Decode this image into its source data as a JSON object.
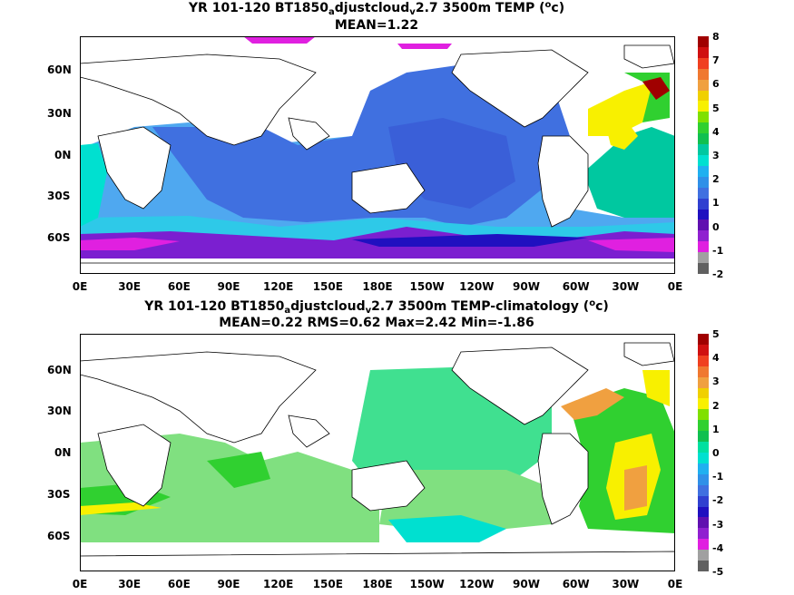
{
  "panel_top": {
    "title_pre": "YR 101-120 BT1850",
    "title_sub1": "a",
    "title_mid": "djustcloud",
    "title_sub2": "v",
    "title_post": "2.7 3500m TEMP (",
    "title_sup": "o",
    "title_end": "c)",
    "stats": "MEAN=1.22",
    "colorbar_ticks": [
      "8",
      "7",
      "6",
      "5",
      "4",
      "3",
      "2",
      "1",
      "0",
      "-1",
      "-2"
    ],
    "colorbar_colors": [
      "#a00000",
      "#d01010",
      "#f04020",
      "#f07830",
      "#f0a040",
      "#f0d000",
      "#f8f000",
      "#80e000",
      "#30d030",
      "#10c050",
      "#00c8a0",
      "#00e0d0",
      "#20b0f0",
      "#3090e8",
      "#4070e0",
      "#3040d0",
      "#2010c0",
      "#6010b0",
      "#9020d0",
      "#e020e0",
      "#a0a0a0",
      "#606060"
    ]
  },
  "panel_bottom": {
    "title_pre": "YR 101-120 BT1850",
    "title_sub1": "a",
    "title_mid": "djustcloud",
    "title_sub2": "v",
    "title_post": "2.7 3500m TEMP-climatology (",
    "title_sup": "o",
    "title_end": "c)",
    "stats": "MEAN=0.22   RMS=0.62   Max=2.42   Min=-1.86",
    "colorbar_ticks": [
      "5",
      "4",
      "3",
      "2",
      "1",
      "0",
      "-1",
      "-2",
      "-3",
      "-4",
      "-5"
    ],
    "colorbar_colors": [
      "#a00000",
      "#d01010",
      "#f04020",
      "#f07830",
      "#f0a040",
      "#f0d000",
      "#f8f000",
      "#80e000",
      "#30d030",
      "#10c050",
      "#00e0a0",
      "#00e0d0",
      "#20b0f0",
      "#3090e8",
      "#4070e0",
      "#3040d0",
      "#2010c0",
      "#6010b0",
      "#9020d0",
      "#e020e0",
      "#a0a0a0",
      "#606060"
    ]
  },
  "lat_labels": [
    "60N",
    "30N",
    "0N",
    "30S",
    "60S"
  ],
  "lon_labels": [
    "0E",
    "30E",
    "60E",
    "90E",
    "120E",
    "150E",
    "180E",
    "150W",
    "120W",
    "90W",
    "60W",
    "30W",
    "0E"
  ]
}
